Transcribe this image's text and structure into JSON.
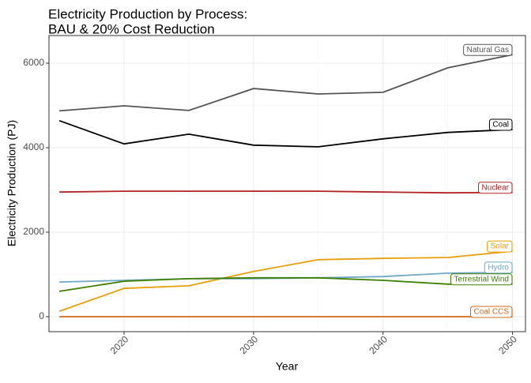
{
  "chart_data": {
    "type": "line",
    "title_lines": [
      "Electricity Production by Process:",
      "BAU & 20% Cost Reduction"
    ],
    "x_label": "Year",
    "y_label": "Electricity Production (PJ)",
    "x": [
      2015,
      2020,
      2025,
      2030,
      2035,
      2040,
      2045,
      2050
    ],
    "series": [
      {
        "name": "Natural Gas",
        "color": "#555555",
        "values": [
          4870,
          4990,
          4880,
          5400,
          5270,
          5310,
          5890,
          6200
        ]
      },
      {
        "name": "Coal",
        "color": "#000000",
        "values": [
          4640,
          4090,
          4320,
          4060,
          4020,
          4210,
          4360,
          4430
        ]
      },
      {
        "name": "Nuclear",
        "color": "#b22222",
        "values": [
          2950,
          2970,
          2970,
          2970,
          2970,
          2950,
          2930,
          2940
        ]
      },
      {
        "name": "Solar",
        "color": "#e6a00a",
        "values": [
          130,
          670,
          730,
          1070,
          1350,
          1380,
          1400,
          1550
        ]
      },
      {
        "name": "Hydro",
        "color": "#6fa8c8",
        "values": [
          820,
          860,
          900,
          900,
          920,
          950,
          1030,
          1050
        ]
      },
      {
        "name": "Terrestrial Wind",
        "color": "#3f7f00",
        "values": [
          600,
          840,
          900,
          920,
          920,
          860,
          770,
          770
        ]
      },
      {
        "name": "Coal CCS",
        "color": "#d2691e",
        "values": [
          0,
          0,
          0,
          0,
          0,
          0,
          0,
          0
        ]
      }
    ],
    "xlim": [
      2014.2,
      2051
    ],
    "xticks": [
      2020,
      2030,
      2040,
      2050
    ],
    "ylim": [
      -355,
      6654
    ],
    "yticks": [
      0,
      2000,
      4000,
      6000
    ],
    "grid": true
  }
}
